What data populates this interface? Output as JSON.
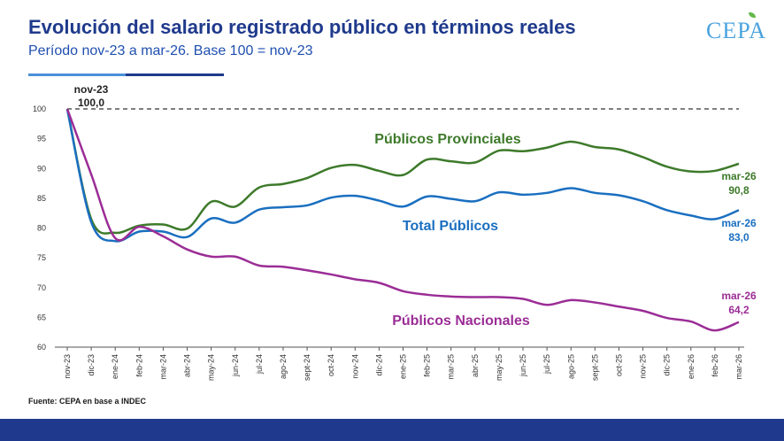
{
  "header": {
    "title": "Evolución del salario registrado público en términos reales",
    "subtitle": "Período nov-23 a mar-26. Base 100 = nov-23",
    "logo": "CEPA"
  },
  "footer": {
    "source": "Fuente: CEPA en base a INDEC"
  },
  "colors": {
    "provinciales": "#3d7a2a",
    "total": "#1a6fc0",
    "nacionales": "#9b2d96",
    "title": "#1f3a8c"
  },
  "chart_data": {
    "type": "line",
    "title": "Evolución del salario registrado público en términos reales",
    "subtitle": "Período nov-23 a mar-26. Base 100 = nov-23",
    "ylim": [
      60,
      100
    ],
    "yticks": [
      "60",
      "65",
      "70",
      "75",
      "80",
      "85",
      "90",
      "95",
      "100"
    ],
    "grid": false,
    "x": [
      "nov-23",
      "dic-23",
      "ene-24",
      "feb-24",
      "mar-24",
      "abr-24",
      "may-24",
      "jun-24",
      "jul-24",
      "ago-24",
      "sept-24",
      "oct-24",
      "nov-24",
      "dic-24",
      "ene-25",
      "feb-25",
      "mar-25",
      "abr-25",
      "may-25",
      "jun-25",
      "jul-25",
      "ago-25",
      "sept-25",
      "oct-25",
      "nov-25",
      "dic-25",
      "ene-26",
      "feb-26",
      "mar-26"
    ],
    "series": [
      {
        "name": "Públicos Provinciales",
        "values": [
          100.0,
          81.5,
          79.2,
          80.4,
          80.6,
          79.9,
          84.4,
          83.6,
          86.8,
          87.4,
          88.4,
          90.1,
          90.6,
          89.6,
          88.9,
          91.5,
          91.2,
          91.0,
          93.0,
          92.9,
          93.5,
          94.5,
          93.6,
          93.2,
          91.9,
          90.3,
          89.5,
          89.6,
          90.8
        ]
      },
      {
        "name": "Total Públicos",
        "values": [
          100.0,
          81.0,
          77.8,
          79.4,
          79.4,
          78.5,
          81.6,
          80.9,
          83.1,
          83.5,
          83.8,
          85.1,
          85.4,
          84.6,
          83.6,
          85.3,
          84.9,
          84.5,
          86.0,
          85.6,
          85.9,
          86.7,
          85.9,
          85.5,
          84.5,
          83.0,
          82.1,
          81.5,
          83.0
        ]
      },
      {
        "name": "Públicos Nacionales",
        "values": [
          100.0,
          89.0,
          78.3,
          80.2,
          78.6,
          76.4,
          75.2,
          75.2,
          73.7,
          73.5,
          72.9,
          72.2,
          71.4,
          70.8,
          69.4,
          68.8,
          68.5,
          68.4,
          68.4,
          68.1,
          67.1,
          67.9,
          67.5,
          66.8,
          66.1,
          64.9,
          64.3,
          62.8,
          64.2
        ]
      }
    ],
    "reference_line": 100,
    "annotations": [
      {
        "text": "nov-23",
        "value": "100,0"
      },
      {
        "text": "mar-26",
        "value": "90,8"
      },
      {
        "text": "mar-26",
        "value": "83,0"
      },
      {
        "text": "mar-26",
        "value": "64,2"
      }
    ]
  }
}
